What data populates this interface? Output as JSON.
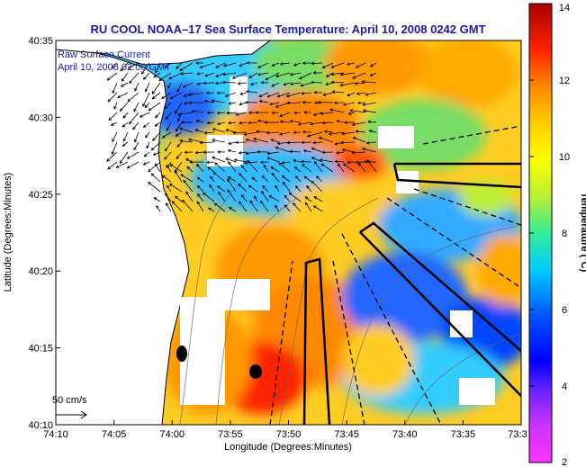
{
  "chart_data": {
    "type": "heatmap",
    "title": "RU COOL  NOAA–17  Sea Surface Temperature:  April 10, 2008 0242 GMT",
    "xlabel": "Longitude (Degrees:Minutes)",
    "ylabel": "Latitude (Degrees:Minutes)",
    "x_ticks": [
      "74:10",
      "74:05",
      "74:00",
      "73:55",
      "73:50",
      "73:45",
      "73:40",
      "73:35",
      "73:3"
    ],
    "y_ticks": [
      "40:35",
      "40:30",
      "40:25",
      "40:20",
      "40:15",
      "40:10"
    ],
    "xlim_deg_w": [
      74.1667,
      73.5
    ],
    "ylim_deg_n": [
      40.1667,
      40.5833
    ],
    "legend": {
      "line1": "Raw Surface Current",
      "line2": "April 10, 2008 02:00 GMT"
    },
    "scale_label": "50 cm/s",
    "colorbar": {
      "label": "Temperature (°C)",
      "min": 2,
      "max": 14,
      "ticks": [
        "14",
        "12",
        "10",
        "8",
        "6",
        "4",
        "2"
      ]
    },
    "markers": [
      {
        "name": "buoy-west",
        "lon_w": 73.98,
        "lat_n": 40.23
      },
      {
        "name": "buoy-east",
        "lon_w": 73.87,
        "lat_n": 40.225
      }
    ],
    "colors": {
      "land": "#ffffff",
      "title": "#1a1aa8",
      "coast": "#000000"
    }
  }
}
